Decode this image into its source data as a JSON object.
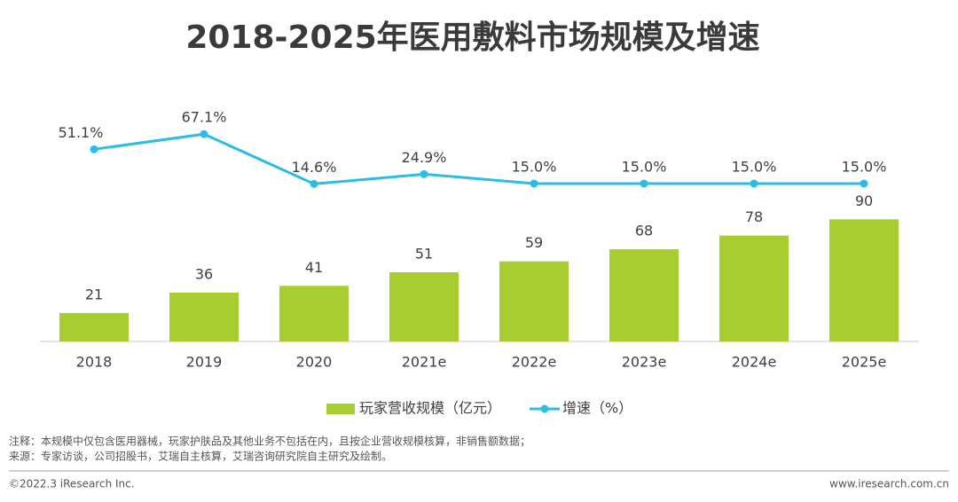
{
  "chart_data": {
    "type": "combo",
    "title": "2018-2025年医用敷料市场规模及增速",
    "categories": [
      "2018",
      "2019",
      "2020",
      "2021e",
      "2022e",
      "2023e",
      "2024e",
      "2025e"
    ],
    "series": [
      {
        "name": "玩家营收规模（亿元）",
        "type": "bar",
        "color": "#a8cd30",
        "values": [
          21,
          36,
          41,
          51,
          59,
          68,
          78,
          90
        ]
      },
      {
        "name": "增速（%）",
        "type": "line",
        "axis": "y2",
        "color": "#2bbde6",
        "values": [
          51.1,
          67.1,
          14.6,
          24.9,
          15.0,
          15.0,
          15.0,
          15.0
        ],
        "value_labels": [
          "51.1%",
          "67.1%",
          "14.6%",
          "24.9%",
          "15.0%",
          "15.0%",
          "15.0%",
          "15.0%"
        ]
      }
    ],
    "ylim": [
      0,
      100
    ],
    "y2lim": [
      0,
      100
    ],
    "legend": "bottom"
  },
  "notes": [
    "注释：本规模中仅包含医用器械，玩家护肤品及其他业务不包括在内，且按企业营收规模核算，非销售额数据；",
    "来源：专家访谈，公司招股书，艾瑞自主核算，艾瑞咨询研究院自主研究及绘制。"
  ],
  "footer": {
    "left": "©2022.3 iResearch Inc.",
    "right": "www.iresearch.com.cn"
  }
}
